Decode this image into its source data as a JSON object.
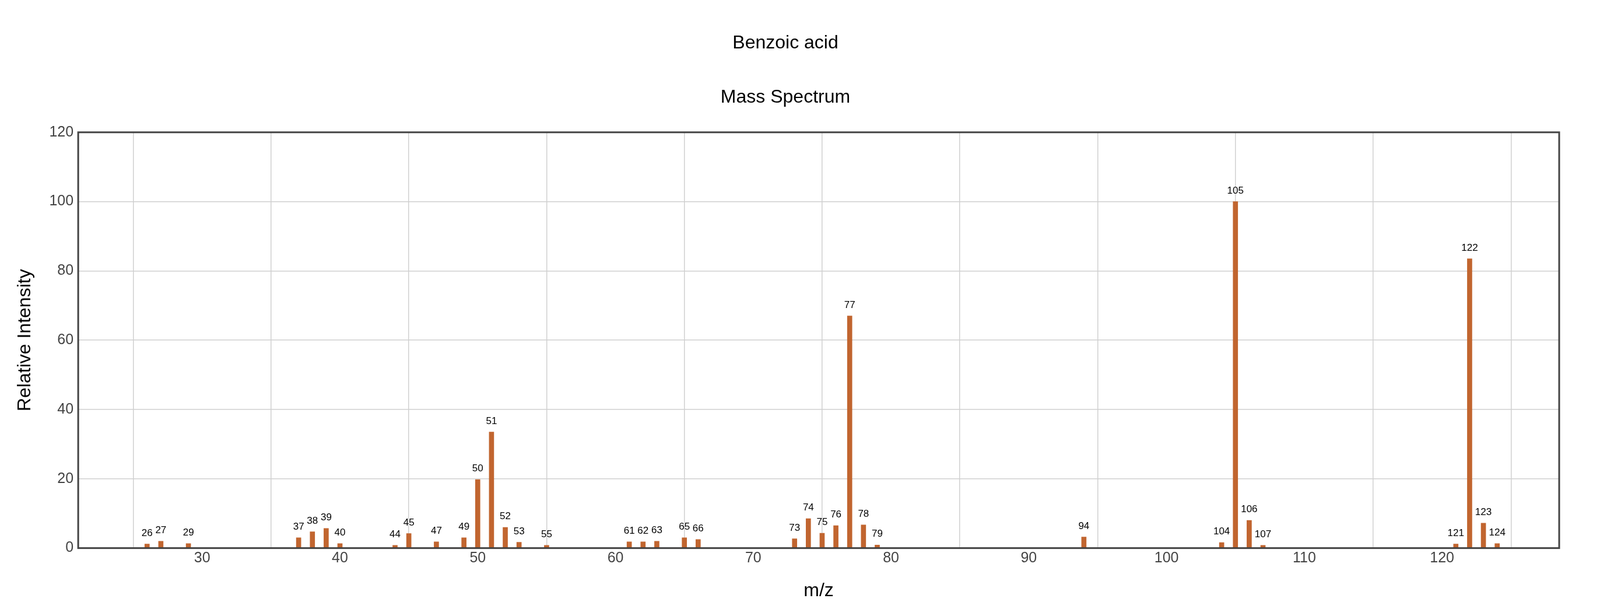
{
  "chart_data": {
    "type": "bar",
    "title": "Benzoic acid",
    "subtitle": "Mass Spectrum",
    "x_label": "m/z",
    "y_label": "Relative Intensity",
    "x": [
      26,
      27,
      29,
      37,
      38,
      39,
      40,
      44,
      45,
      47,
      49,
      50,
      51,
      52,
      53,
      55,
      61,
      62,
      63,
      65,
      66,
      73,
      74,
      75,
      76,
      77,
      78,
      79,
      94,
      104,
      105,
      106,
      107,
      121,
      122,
      123,
      124
    ],
    "values": [
      1.2,
      2,
      1.3,
      3,
      4.7,
      5.7,
      1.3,
      0.8,
      4.2,
      1.8,
      3,
      19.8,
      33.5,
      6,
      1.7,
      0.8,
      1.8,
      1.8,
      2,
      3,
      2.5,
      2.7,
      8.5,
      4.3,
      6.5,
      67,
      6.7,
      0.9,
      3.2,
      1.6,
      100,
      8,
      0.8,
      1.2,
      83.5,
      7.2,
      1.3
    ],
    "color": "#c1652f",
    "xlim": [
      21,
      128.5
    ],
    "xticks": [
      30,
      40,
      50,
      60,
      70,
      80,
      90,
      100,
      110,
      120
    ],
    "ylim": [
      0,
      120
    ],
    "yticks": [
      0,
      20,
      40,
      60,
      80,
      100,
      120
    ],
    "grid": true,
    "data_labels": true
  }
}
